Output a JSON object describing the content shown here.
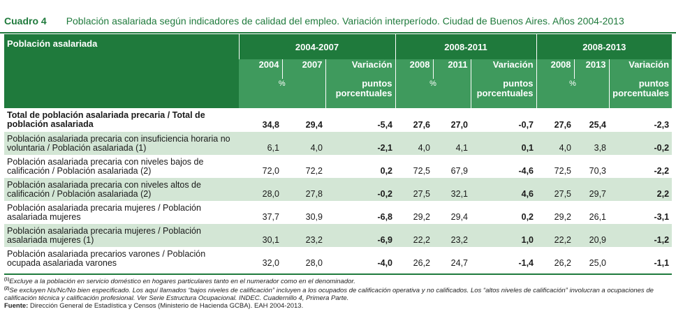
{
  "title": {
    "number": "Cuadro 4",
    "text": "Población asalariada según indicadores de calidad del empleo. Variación interperíodo. Ciudad de Buenos Aires. Años 2004-2013"
  },
  "header": {
    "row_label": "Población asalariada",
    "periods": [
      "2004-2007",
      "2008-2011",
      "2008-2013"
    ],
    "years": [
      [
        "2004",
        "2007"
      ],
      [
        "2008",
        "2011"
      ],
      [
        "2008",
        "2013"
      ]
    ],
    "variation_label": "Variación",
    "percent_symbol": "%",
    "points_label_line1": "puntos",
    "points_label_line2": "porcentuales"
  },
  "rows": [
    {
      "label": "Total de población asalariada precaria / Total de población asalariada",
      "values": [
        "34,8",
        "29,4",
        "-5,4",
        "27,6",
        "27,0",
        "-0,7",
        "27,6",
        "25,4",
        "-2,3"
      ]
    },
    {
      "label": "Población asalariada precaria con insuficiencia horaria no voluntaria / Población asalariada (1)",
      "values": [
        "6,1",
        "4,0",
        "-2,1",
        "4,0",
        "4,1",
        "0,1",
        "4,0",
        "3,8",
        "-0,2"
      ]
    },
    {
      "label": "Población asalariada precaria con niveles bajos de calificación / Población asalariada (2)",
      "values": [
        "72,0",
        "72,2",
        "0,2",
        "72,5",
        "67,9",
        "-4,6",
        "72,5",
        "70,3",
        "-2,2"
      ]
    },
    {
      "label": "Población asalariada precaria con niveles altos de calificación / Población asalariada (2)",
      "values": [
        "28,0",
        "27,8",
        "-0,2",
        "27,5",
        "32,1",
        "4,6",
        "27,5",
        "29,7",
        "2,2"
      ]
    },
    {
      "label": "Población asalariada precaria mujeres / Población asalariada mujeres",
      "values": [
        "37,7",
        "30,9",
        "-6,8",
        "29,2",
        "29,4",
        "0,2",
        "29,2",
        "26,1",
        "-3,1"
      ]
    },
    {
      "label": "Población asalariada precaria mujeres / Población asalariada mujeres (1)",
      "values": [
        "30,1",
        "23,2",
        "-6,9",
        "22,2",
        "23,2",
        "1,0",
        "22,2",
        "20,9",
        "-1,2"
      ]
    },
    {
      "label": "Población asalariada precarios varones / Población ocupada asalariada varones",
      "values": [
        "32,0",
        "28,0",
        "-4,0",
        "26,2",
        "24,7",
        "-1,4",
        "26,2",
        "25,0",
        "-1,1"
      ]
    }
  ],
  "notes": {
    "n1_mark": "(1)",
    "n1_text": "Excluye a la población en servicio doméstico en hogares particulares tanto en el numerador como en el denominador.",
    "n2_mark": "(2)",
    "n2_text": "Se excluyen Ns/Nc/No bien especificado. Los aquí llamados “bajos niveles de calificación” incluyen a los ocupados de calificación operativa y no calificados. Los “altos niveles de calificación” involucran a ocupaciones de calificación técnica y calificación profesional. Ver Serie Estructura Ocupacional. INDEC. Cuadernillo 4, Primera Parte.",
    "source_label": "Fuente:",
    "source_text": "Dirección General de Estadística y Censos (Ministerio de Hacienda GCBA). EAH 2004-2013."
  }
}
